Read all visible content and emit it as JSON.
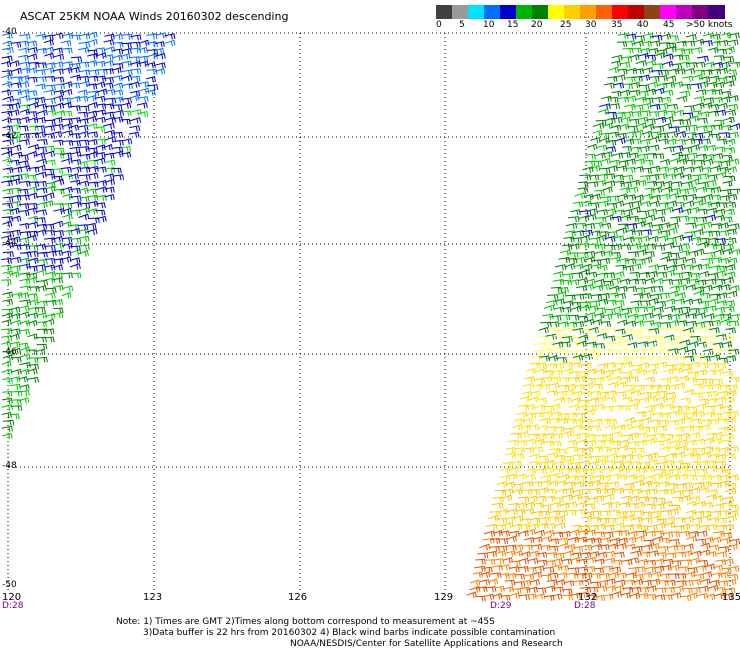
{
  "title": "ASCAT 25KM NOAA Winds 20160302 descending",
  "legend": {
    "ticks": [
      "0",
      "5",
      "10",
      "15",
      "20",
      "25",
      "30",
      "35",
      "40",
      "45",
      ">50 knots"
    ],
    "colors": [
      "#404040",
      "#9a9a9a",
      "#00e0ff",
      "#0070ff",
      "#0000c8",
      "#00b400",
      "#008000",
      "#ffff00",
      "#ffd000",
      "#ffa000",
      "#ff6000",
      "#ff0000",
      "#c00000",
      "#8b4513",
      "#ff00ff",
      "#c000c0",
      "#800080",
      "#400080"
    ]
  },
  "axes": {
    "lat_labels": [
      "-40",
      "-42",
      "-44",
      "-46",
      "-48",
      "-50"
    ],
    "lon_labels": [
      "120",
      "123",
      "126",
      "129",
      "132",
      "135"
    ]
  },
  "swaths": {
    "left_time": "D:28",
    "right_times": [
      "D:29",
      "D:28"
    ]
  },
  "notes": {
    "line1": "Note: 1) Times are GMT 2)Times along bottom correspond to measurement at ~45S",
    "line2": "3)Data buffer is 22 hrs from 20160302 4) Black wind barbs indicate possible contamination",
    "line3": "NOAA/NESDIS/Center for Satellite Applications and Research"
  }
}
